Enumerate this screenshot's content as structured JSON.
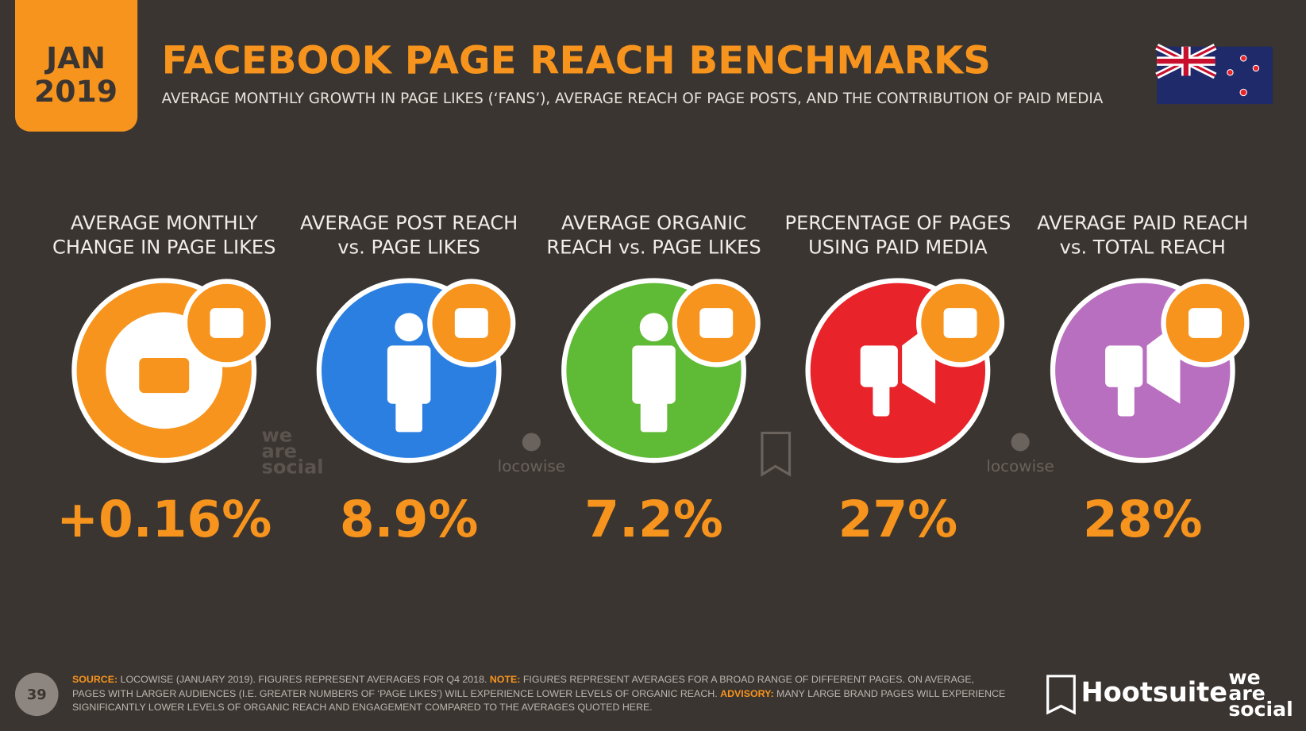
{
  "header": {
    "month": "JAN",
    "year": "2019",
    "title": "FACEBOOK PAGE REACH BENCHMARKS",
    "subtitle": "AVERAGE MONTHLY GROWTH IN PAGE LIKES (‘FANS’), AVERAGE REACH OF PAGE POSTS, AND THE CONTRIBUTION OF PAID MEDIA"
  },
  "metrics": [
    {
      "label": [
        "AVERAGE MONTHLY",
        "CHANGE IN PAGE LIKES"
      ],
      "value": "+0.16%",
      "color": "#f7941d"
    },
    {
      "label": [
        "AVERAGE POST REACH",
        "vs. PAGE LIKES"
      ],
      "value": "8.9%",
      "color": "#2b7fe0"
    },
    {
      "label": [
        "AVERAGE ORGANIC",
        "REACH vs. PAGE LIKES"
      ],
      "value": "7.2%",
      "color": "#5fba35"
    },
    {
      "label": [
        "PERCENTAGE OF PAGES",
        "USING PAID MEDIA"
      ],
      "value": "27%",
      "color": "#e8232a"
    },
    {
      "label": [
        "AVERAGE PAID REACH",
        "vs. TOTAL REACH"
      ],
      "value": "28%",
      "color": "#b96fc0"
    }
  ],
  "watermarks": {
    "we_are_social": [
      "we",
      "are",
      "social"
    ],
    "locowise": "locowise"
  },
  "footer": {
    "page": "39",
    "source_label": "SOURCE:",
    "source_text": "LOCOWISE (JANUARY 2019). FIGURES REPRESENT AVERAGES FOR Q4 2018.",
    "note_label": "NOTE:",
    "note_text": "FIGURES REPRESENT AVERAGES FOR A BROAD RANGE OF DIFFERENT PAGES. ON AVERAGE, PAGES WITH LARGER AUDIENCES (I.E. GREATER NUMBERS OF ‘PAGE LIKES’) WILL EXPERIENCE LOWER LEVELS OF ORGANIC REACH.",
    "advisory_label": "ADVISORY:",
    "advisory_text": "MANY LARGE BRAND PAGES WILL EXPERIENCE SIGNIFICANTLY LOWER LEVELS OF ORGANIC REACH AND ENGAGEMENT COMPARED TO THE AVERAGES QUOTED HERE.",
    "hootsuite": "Hootsuite",
    "we_are_social": [
      "we",
      "are",
      "social"
    ]
  }
}
